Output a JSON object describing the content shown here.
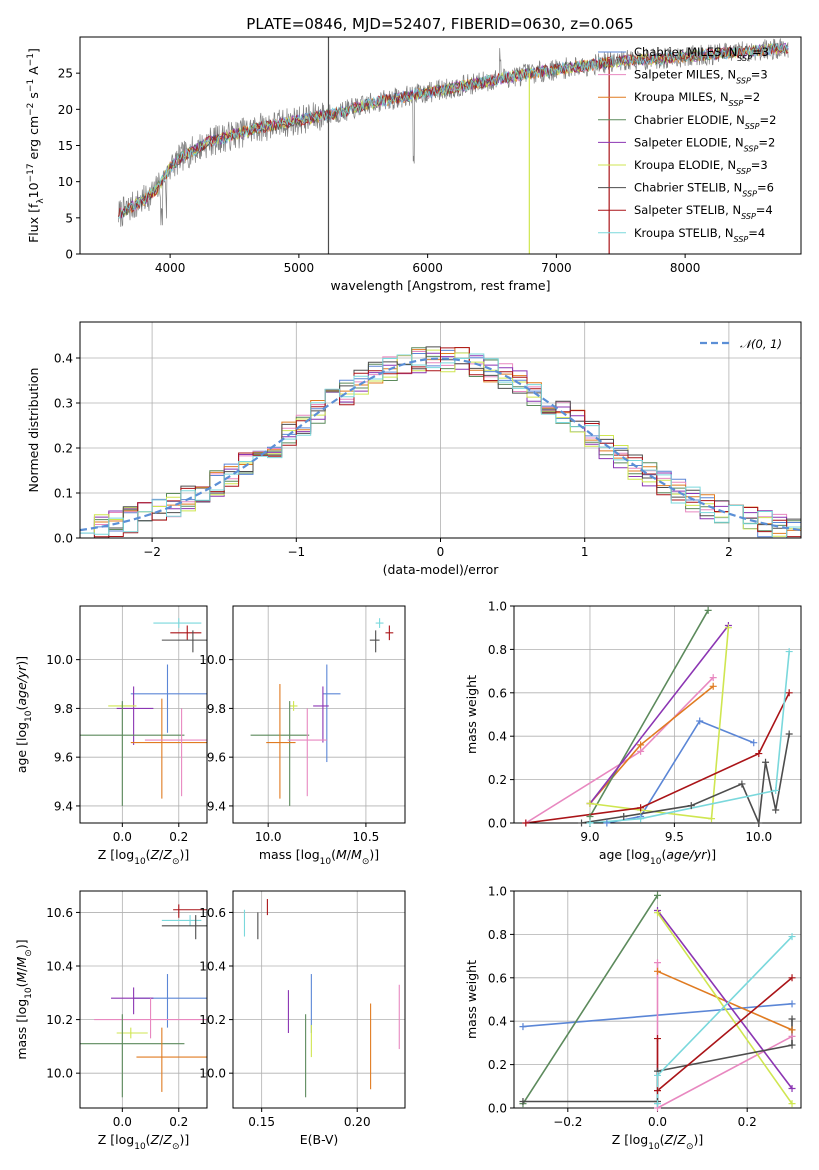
{
  "figure": {
    "title": "PLATE=0846, MJD=52407, FIBERID=0630, z=0.065"
  },
  "colors": {
    "Chabrier MILES": "#5b86d6",
    "Salpeter MILES": "#e888c0",
    "Kroupa MILES": "#e07b21",
    "Chabrier ELODIE": "#5c8a5c",
    "Salpeter ELODIE": "#8b35b3",
    "Kroupa ELODIE": "#cfe650",
    "Chabrier STELIB": "#4d4d4d",
    "Salpeter STELIB": "#aa1418",
    "Kroupa STELIB": "#7ad8dc",
    "normal": "#5b8fd6"
  },
  "chart_data": [
    {
      "id": "spectrum",
      "type": "line",
      "xlabel": "wavelength [Angstrom, rest frame]",
      "ylabel": "Flux [f_λ10^-17 erg cm^-2 s^-1 A^-1]",
      "xlim": [
        3300,
        8900
      ],
      "ylim": [
        0,
        30
      ],
      "xticks": [
        4000,
        5000,
        6000,
        7000,
        8000
      ],
      "yticks": [
        0,
        5,
        10,
        15,
        20,
        25
      ],
      "grid": false,
      "legend_position": "bottom-right",
      "legend": [
        {
          "model": "Chabrier MILES",
          "nssp": "3"
        },
        {
          "model": "Salpeter MILES",
          "nssp": "3"
        },
        {
          "model": "Kroupa MILES",
          "nssp": "2"
        },
        {
          "model": "Chabrier ELODIE",
          "nssp": "2"
        },
        {
          "model": "Salpeter ELODIE",
          "nssp": "2"
        },
        {
          "model": "Kroupa ELODIE",
          "nssp": "3"
        },
        {
          "model": "Chabrier STELIB",
          "nssp": "6"
        },
        {
          "model": "Salpeter STELIB",
          "nssp": "4"
        },
        {
          "model": "Kroupa STELIB",
          "nssp": "4"
        }
      ],
      "continuum": {
        "x": [
          3600,
          3700,
          3800,
          3900,
          4000,
          4100,
          4300,
          4500,
          4700,
          5000,
          5300,
          5600,
          5900,
          6200,
          6500,
          6800,
          7000,
          7200,
          7400,
          7600,
          7800,
          8000,
          8200,
          8400,
          8600,
          8800
        ],
        "y": [
          5.5,
          6.5,
          7.5,
          9.0,
          12.0,
          13.5,
          15.5,
          16.5,
          17.5,
          18.5,
          19.5,
          21.0,
          22.0,
          23.0,
          24.0,
          25.0,
          25.5,
          26.0,
          26.5,
          26.8,
          27.0,
          27.3,
          27.6,
          27.9,
          28.2,
          28.5
        ]
      },
      "artifacts": [
        {
          "x": 5230,
          "ymin": 0,
          "ymax": 30,
          "model": "Chabrier STELIB"
        },
        {
          "x": 6790,
          "ymin": 0,
          "ymax": 25,
          "model": "Kroupa ELODIE"
        },
        {
          "x": 7410,
          "ymin": 0,
          "ymax": 27,
          "model": "Salpeter STELIB"
        }
      ]
    },
    {
      "id": "residuals",
      "type": "histogram",
      "xlabel": "(data-model)/error",
      "ylabel": "Normed distribution",
      "xlim": [
        -2.5,
        2.5
      ],
      "ylim": [
        0,
        0.48
      ],
      "xticks": [
        -2,
        -1,
        0,
        1,
        2
      ],
      "yticks": [
        0.0,
        0.1,
        0.2,
        0.3,
        0.4
      ],
      "grid": true,
      "legend_position": "top-right",
      "legend": [
        "𝒩(0, 1)"
      ],
      "reference_curve": "standard normal pdf"
    },
    {
      "id": "age_vs_Z",
      "type": "errorbar",
      "xlabel": "Z [log10(Z/Z☉)]",
      "ylabel": "age  [log10(age/yr)]",
      "xlim": [
        -0.15,
        0.3
      ],
      "ylim": [
        9.33,
        10.22
      ],
      "xticks": [
        0.0,
        0.2
      ],
      "yticks": [
        9.4,
        9.6,
        9.8,
        10.0
      ],
      "points": [
        {
          "model": "Kroupa STELIB",
          "x": 0.2,
          "xerr": [
            0.09,
            0.08
          ],
          "y": 10.15,
          "yerr": [
            0.02,
            0.02
          ]
        },
        {
          "model": "Salpeter STELIB",
          "x": 0.23,
          "xerr": [
            0.06,
            0.05
          ],
          "y": 10.11,
          "yerr": [
            0.03,
            0.03
          ]
        },
        {
          "model": "Chabrier STELIB",
          "x": 0.25,
          "xerr": [
            0.11,
            0.06
          ],
          "y": 10.08,
          "yerr": [
            0.05,
            0.04
          ]
        },
        {
          "model": "Chabrier MILES",
          "x": 0.16,
          "xerr": [
            0.13,
            0.14
          ],
          "y": 9.86,
          "yerr": [
            0.16,
            0.12
          ]
        },
        {
          "model": "Salpeter ELODIE",
          "x": 0.04,
          "xerr": [
            0.06,
            0.07
          ],
          "y": 9.8,
          "yerr": [
            0.15,
            0.09
          ]
        },
        {
          "model": "Kroupa ELODIE",
          "x": 0.0,
          "xerr": [
            0.05,
            0.05
          ],
          "y": 9.81,
          "yerr": [
            0.01,
            0.01
          ]
        },
        {
          "model": "Chabrier ELODIE",
          "x": 0.0,
          "xerr": [
            0.15,
            0.22
          ],
          "y": 9.69,
          "yerr": [
            0.29,
            0.14
          ]
        },
        {
          "model": "Kroupa MILES",
          "x": 0.14,
          "xerr": [
            0.11,
            0.16
          ],
          "y": 9.66,
          "yerr": [
            0.23,
            0.18
          ]
        },
        {
          "model": "Salpeter MILES",
          "x": 0.21,
          "xerr": [
            0.13,
            0.11
          ],
          "y": 9.67,
          "yerr": [
            0.23,
            0.13
          ]
        }
      ]
    },
    {
      "id": "age_vs_mass",
      "type": "errorbar",
      "xlabel": "mass [log10(M/M☉)]",
      "ylabel": "",
      "xlim": [
        9.82,
        10.7
      ],
      "ylim": [
        9.33,
        10.22
      ],
      "xticks": [
        10.0,
        10.5
      ],
      "yticks": [
        9.4,
        9.6,
        9.8,
        10.0
      ],
      "points": [
        {
          "model": "Kroupa STELIB",
          "x": 10.57,
          "xerr": [
            0.02,
            0.02
          ],
          "y": 10.15,
          "yerr": [
            0.02,
            0.02
          ]
        },
        {
          "model": "Salpeter STELIB",
          "x": 10.62,
          "xerr": [
            0.02,
            0.02
          ],
          "y": 10.11,
          "yerr": [
            0.03,
            0.03
          ]
        },
        {
          "model": "Chabrier STELIB",
          "x": 10.55,
          "xerr": [
            0.03,
            0.02
          ],
          "y": 10.08,
          "yerr": [
            0.05,
            0.04
          ]
        },
        {
          "model": "Chabrier MILES",
          "x": 10.3,
          "xerr": [
            0.02,
            0.07
          ],
          "y": 9.86,
          "yerr": [
            0.28,
            0.12
          ]
        },
        {
          "model": "Salpeter ELODIE",
          "x": 10.28,
          "xerr": [
            0.05,
            0.03
          ],
          "y": 9.81,
          "yerr": [
            0.15,
            0.08
          ]
        },
        {
          "model": "Kroupa ELODIE",
          "x": 10.13,
          "xerr": [
            0.02,
            0.02
          ],
          "y": 9.81,
          "yerr": [
            0.02,
            0.02
          ]
        },
        {
          "model": "Chabrier ELODIE",
          "x": 10.11,
          "xerr": [
            0.2,
            0.1
          ],
          "y": 9.69,
          "yerr": [
            0.29,
            0.14
          ]
        },
        {
          "model": "Kroupa MILES",
          "x": 10.06,
          "xerr": [
            0.07,
            0.08
          ],
          "y": 9.66,
          "yerr": [
            0.23,
            0.24
          ]
        },
        {
          "model": "Salpeter MILES",
          "x": 10.2,
          "xerr": [
            0.1,
            0.1
          ],
          "y": 9.67,
          "yerr": [
            0.23,
            0.13
          ]
        }
      ]
    },
    {
      "id": "weight_vs_age",
      "type": "line",
      "xlabel": "age  [log10(age/yr)]",
      "ylabel": "mass weight",
      "xlim": [
        8.55,
        10.25
      ],
      "ylim": [
        0,
        1
      ],
      "xticks": [
        9.0,
        9.5,
        10.0
      ],
      "yticks": [
        0.0,
        0.2,
        0.4,
        0.6,
        0.8,
        1.0
      ],
      "grid": true,
      "series": [
        {
          "model": "Chabrier MILES",
          "points": [
            [
              9.1,
              0.0
            ],
            [
              9.3,
              0.03
            ],
            [
              9.65,
              0.47
            ],
            [
              9.97,
              0.37
            ]
          ]
        },
        {
          "model": "Salpeter MILES",
          "points": [
            [
              8.62,
              0.0
            ],
            [
              9.3,
              0.33
            ],
            [
              9.73,
              0.67
            ]
          ]
        },
        {
          "model": "Kroupa MILES",
          "points": [
            [
              9.0,
              0.09
            ],
            [
              9.3,
              0.36
            ],
            [
              9.73,
              0.63
            ]
          ]
        },
        {
          "model": "Chabrier ELODIE",
          "points": [
            [
              9.0,
              0.03
            ],
            [
              9.7,
              0.98
            ]
          ]
        },
        {
          "model": "Salpeter ELODIE",
          "points": [
            [
              9.0,
              0.09
            ],
            [
              9.82,
              0.91
            ]
          ]
        },
        {
          "model": "Kroupa ELODIE",
          "points": [
            [
              9.0,
              0.09
            ],
            [
              9.3,
              0.06
            ],
            [
              9.72,
              0.02
            ],
            [
              9.82,
              0.9
            ]
          ]
        },
        {
          "model": "Chabrier STELIB",
          "points": [
            [
              8.95,
              0.0
            ],
            [
              9.2,
              0.03
            ],
            [
              9.6,
              0.08
            ],
            [
              9.9,
              0.18
            ],
            [
              10.0,
              0.0
            ],
            [
              10.04,
              0.28
            ],
            [
              10.1,
              0.06
            ],
            [
              10.18,
              0.41
            ]
          ]
        },
        {
          "model": "Salpeter STELIB",
          "points": [
            [
              8.62,
              0.0
            ],
            [
              9.3,
              0.07
            ],
            [
              10.0,
              0.32
            ],
            [
              10.18,
              0.6
            ]
          ]
        },
        {
          "model": "Kroupa STELIB",
          "points": [
            [
              9.0,
              0.0
            ],
            [
              9.3,
              0.02
            ],
            [
              10.1,
              0.15
            ],
            [
              10.18,
              0.79
            ]
          ]
        }
      ]
    },
    {
      "id": "mass_vs_Z",
      "type": "errorbar",
      "xlabel": "Z [log10(Z/Z☉)]",
      "ylabel": "mass [log10(M/M☉)]",
      "xlim": [
        -0.15,
        0.3
      ],
      "ylim": [
        9.87,
        10.68
      ],
      "xticks": [
        0.0,
        0.2
      ],
      "yticks": [
        10.0,
        10.2,
        10.4,
        10.6
      ],
      "points": [
        {
          "model": "Salpeter STELIB",
          "x": 0.2,
          "xerr": [
            0.02,
            0.1
          ],
          "y": 10.61,
          "yerr": [
            0.03,
            0.02
          ]
        },
        {
          "model": "Kroupa STELIB",
          "x": 0.24,
          "xerr": [
            0.1,
            0.04
          ],
          "y": 10.57,
          "yerr": [
            0.02,
            0.02
          ]
        },
        {
          "model": "Chabrier STELIB",
          "x": 0.26,
          "xerr": [
            0.12,
            0.05
          ],
          "y": 10.55,
          "yerr": [
            0.05,
            0.04
          ]
        },
        {
          "model": "Chabrier MILES",
          "x": 0.16,
          "xerr": [
            0.12,
            0.14
          ],
          "y": 10.28,
          "yerr": [
            0.11,
            0.09
          ]
        },
        {
          "model": "Salpeter ELODIE",
          "x": 0.04,
          "xerr": [
            0.08,
            0.07
          ],
          "y": 10.28,
          "yerr": [
            0.06,
            0.04
          ]
        },
        {
          "model": "Salpeter MILES",
          "x": 0.1,
          "xerr": [
            0.2,
            0.2
          ],
          "y": 10.2,
          "yerr": [
            0.07,
            0.08
          ]
        },
        {
          "model": "Kroupa ELODIE",
          "x": 0.03,
          "xerr": [
            0.05,
            0.06
          ],
          "y": 10.15,
          "yerr": [
            0.02,
            0.02
          ]
        },
        {
          "model": "Chabrier ELODIE",
          "x": 0.0,
          "xerr": [
            0.15,
            0.22
          ],
          "y": 10.11,
          "yerr": [
            0.2,
            0.11
          ]
        },
        {
          "model": "Kroupa MILES",
          "x": 0.14,
          "xerr": [
            0.09,
            0.16
          ],
          "y": 10.06,
          "yerr": [
            0.13,
            0.11
          ]
        }
      ]
    },
    {
      "id": "mass_vs_ebv",
      "type": "errorbar",
      "xlabel": "E(B-V)",
      "ylabel": "",
      "xlim": [
        0.135,
        0.225
      ],
      "ylim": [
        9.87,
        10.68
      ],
      "xticks": [
        0.15,
        0.2
      ],
      "yticks": [
        10.0,
        10.2,
        10.4,
        10.6
      ],
      "points": [
        {
          "model": "Kroupa STELIB",
          "x": 0.141,
          "y": 10.56,
          "yerr": [
            0.05,
            0.05
          ]
        },
        {
          "model": "Salpeter STELIB",
          "x": 0.153,
          "y": 10.62,
          "yerr": [
            0.03,
            0.03
          ]
        },
        {
          "model": "Chabrier STELIB",
          "x": 0.148,
          "y": 10.55,
          "yerr": [
            0.05,
            0.05
          ]
        },
        {
          "model": "Salpeter ELODIE",
          "x": 0.164,
          "y": 10.23,
          "yerr": [
            0.08,
            0.08
          ]
        },
        {
          "model": "Chabrier MILES",
          "x": 0.176,
          "y": 10.26,
          "yerr": [
            0.11,
            0.11
          ]
        },
        {
          "model": "Chabrier ELODIE",
          "x": 0.173,
          "y": 10.11,
          "yerr": [
            0.2,
            0.11
          ]
        },
        {
          "model": "Kroupa ELODIE",
          "x": 0.176,
          "y": 10.12,
          "yerr": [
            0.06,
            0.06
          ]
        },
        {
          "model": "Kroupa MILES",
          "x": 0.207,
          "y": 10.1,
          "yerr": [
            0.16,
            0.16
          ]
        },
        {
          "model": "Salpeter MILES",
          "x": 0.222,
          "y": 10.21,
          "yerr": [
            0.12,
            0.12
          ]
        }
      ]
    },
    {
      "id": "weight_vs_Z",
      "type": "line",
      "xlabel": "Z [log10(Z/Z☉)]",
      "ylabel": "mass weight",
      "xlim": [
        -0.32,
        0.32
      ],
      "ylim": [
        0,
        1
      ],
      "xticks": [
        -0.2,
        0.0,
        0.2
      ],
      "yticks": [
        0.0,
        0.2,
        0.4,
        0.6,
        0.8,
        1.0
      ],
      "grid": true,
      "series": [
        {
          "model": "Chabrier MILES",
          "points": [
            [
              -0.3,
              0.375
            ],
            [
              0.3,
              0.48
            ]
          ]
        },
        {
          "model": "Salpeter MILES",
          "points": [
            [
              0.0,
              0.67
            ],
            [
              0.0,
              0.0
            ],
            [
              0.3,
              0.33
            ]
          ]
        },
        {
          "model": "Kroupa MILES",
          "points": [
            [
              0.0,
              0.63
            ],
            [
              0.3,
              0.36
            ]
          ]
        },
        {
          "model": "Chabrier ELODIE",
          "points": [
            [
              -0.3,
              0.02
            ],
            [
              0.0,
              0.98
            ]
          ]
        },
        {
          "model": "Salpeter ELODIE",
          "points": [
            [
              0.0,
              0.91
            ],
            [
              0.3,
              0.09
            ]
          ]
        },
        {
          "model": "Kroupa ELODIE",
          "points": [
            [
              0.0,
              0.9
            ],
            [
              0.3,
              0.02
            ]
          ]
        },
        {
          "model": "Chabrier STELIB",
          "points": [
            [
              -0.3,
              0.03
            ],
            [
              0.0,
              0.03
            ],
            [
              0.0,
              0.17
            ],
            [
              0.3,
              0.29
            ],
            [
              0.3,
              0.41
            ]
          ]
        },
        {
          "model": "Salpeter STELIB",
          "points": [
            [
              0.0,
              0.32
            ],
            [
              0.0,
              0.08
            ],
            [
              0.3,
              0.6
            ]
          ]
        },
        {
          "model": "Kroupa STELIB",
          "points": [
            [
              0.0,
              0.02
            ],
            [
              0.0,
              0.15
            ],
            [
              0.3,
              0.79
            ]
          ]
        }
      ]
    }
  ]
}
